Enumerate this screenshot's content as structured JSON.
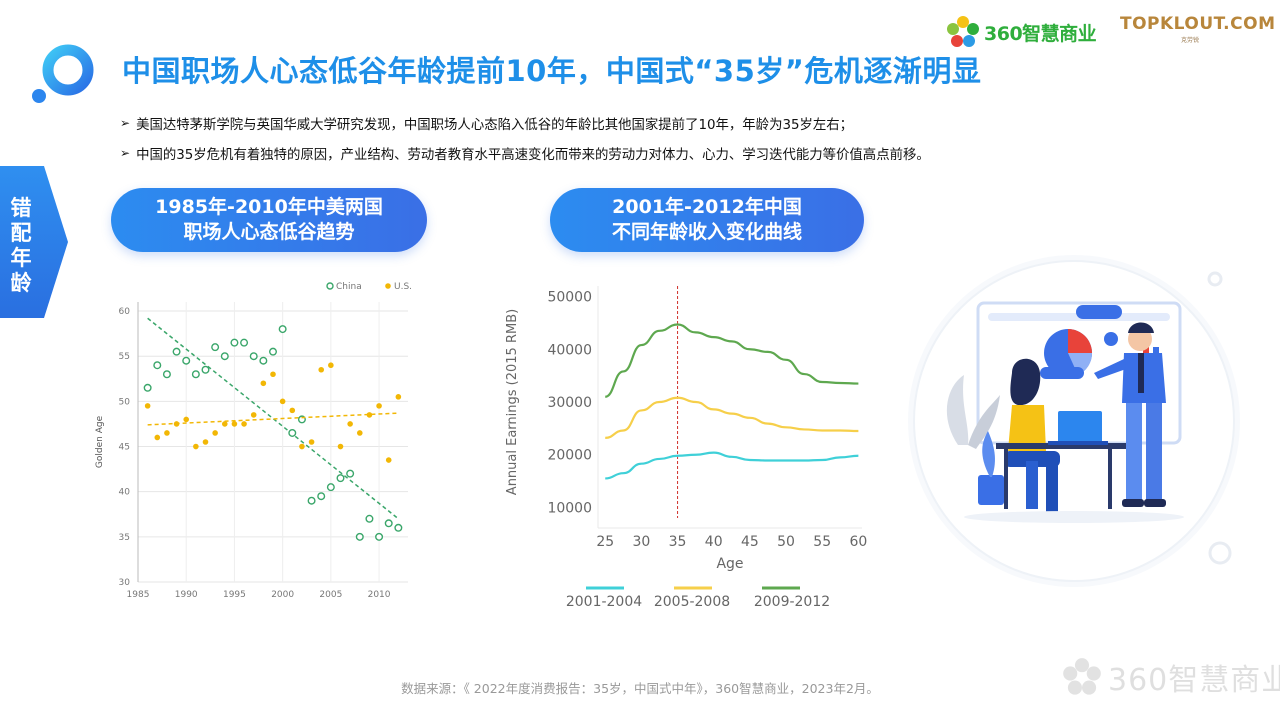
{
  "title": "中国职场人心态低谷年龄提前10年，中国式“35岁”危机逐渐明显",
  "brands": {
    "brand_360": "360智慧商业",
    "topklout": "TOPKLOUT.COM",
    "topklout_sub": "克劳锐"
  },
  "bullets": [
    "美国达特茅斯学院与英国华威大学研究发现，中国职场人心态陷入低谷的年龄比其他国家提前了10年，年龄为35岁左右；",
    "中国的35岁危机有着独特的原因，产业结构、劳动者教育水平高速变化而带来的劳动力对体力、心力、学习迭代能力等价值高点前移。"
  ],
  "side_tab": [
    "错",
    "配",
    "年",
    "龄"
  ],
  "pills": {
    "left_line1": "1985年-2010年中美两国",
    "left_line2": "职场人心态低谷趋势",
    "right_line1": "2001年-2012年中国",
    "right_line2": "不同年龄收入变化曲线"
  },
  "source": "数据来源：《 2022年度消费报告：35岁，中国式中年》，360智慧商业，2023年2月。",
  "watermark": "360智慧商业",
  "colors": {
    "title_blue": "#1e8fe8",
    "china_green": "#3aa66a",
    "us_yellow": "#f2b705",
    "line_cyan": "#3fd0d8",
    "line_yellow": "#f6cf4a",
    "line_green": "#5ea84f"
  },
  "chart_data": [
    {
      "type": "scatter",
      "title": "",
      "xlabel": "",
      "ylabel": "Golden Age",
      "xlim": [
        1985,
        2013
      ],
      "ylim": [
        30,
        61
      ],
      "xticks": [
        1985,
        1990,
        1995,
        2000,
        2005,
        2010
      ],
      "yticks": [
        30,
        35,
        40,
        45,
        50,
        55,
        60
      ],
      "grid": true,
      "legend": "top-right",
      "series": [
        {
          "name": "China",
          "marker": "hollow-circle",
          "points": [
            [
              1986,
              51.5
            ],
            [
              1987,
              54
            ],
            [
              1988,
              53
            ],
            [
              1989,
              55.5
            ],
            [
              1990,
              54.5
            ],
            [
              1991,
              53
            ],
            [
              1992,
              53.5
            ],
            [
              1993,
              56
            ],
            [
              1994,
              55
            ],
            [
              1995,
              56.5
            ],
            [
              1996,
              56.5
            ],
            [
              1997,
              55
            ],
            [
              1998,
              54.5
            ],
            [
              1999,
              55.5
            ],
            [
              2000,
              58
            ],
            [
              2001,
              46.5
            ],
            [
              2002,
              48
            ],
            [
              2003,
              39
            ],
            [
              2004,
              39.5
            ],
            [
              2005,
              40.5
            ],
            [
              2006,
              41.5
            ],
            [
              2007,
              42
            ],
            [
              2008,
              35
            ],
            [
              2009,
              37
            ],
            [
              2010,
              35
            ],
            [
              2011,
              36.5
            ],
            [
              2012,
              36
            ]
          ],
          "trend": [
            [
              1986,
              59.2
            ],
            [
              2012,
              37
            ]
          ]
        },
        {
          "name": "U.S.",
          "marker": "filled-circle",
          "points": [
            [
              1986,
              49.5
            ],
            [
              1987,
              46
            ],
            [
              1988,
              46.5
            ],
            [
              1989,
              47.5
            ],
            [
              1990,
              48
            ],
            [
              1991,
              45
            ],
            [
              1992,
              45.5
            ],
            [
              1993,
              46.5
            ],
            [
              1994,
              47.5
            ],
            [
              1995,
              47.5
            ],
            [
              1996,
              47.5
            ],
            [
              1997,
              48.5
            ],
            [
              1998,
              52
            ],
            [
              1999,
              53
            ],
            [
              2000,
              50
            ],
            [
              2001,
              49
            ],
            [
              2002,
              45
            ],
            [
              2003,
              45.5
            ],
            [
              2004,
              53.5
            ],
            [
              2005,
              54
            ],
            [
              2006,
              45
            ],
            [
              2007,
              47.5
            ],
            [
              2008,
              46.5
            ],
            [
              2009,
              48.5
            ],
            [
              2010,
              49.5
            ],
            [
              2011,
              43.5
            ],
            [
              2012,
              50.5
            ]
          ],
          "trend": [
            [
              1986,
              47.4
            ],
            [
              2012,
              48.7
            ]
          ]
        }
      ]
    },
    {
      "type": "line",
      "title": "",
      "xlabel": "Age",
      "ylabel": "Annual Earnings (2015 RMB)",
      "xlim": [
        24,
        60.5
      ],
      "ylim": [
        8000,
        52000
      ],
      "xticks": [
        25,
        30,
        35,
        40,
        45,
        50,
        55,
        60
      ],
      "yticks": [
        10000,
        20000,
        30000,
        40000,
        50000
      ],
      "grid": false,
      "legend": "bottom",
      "reference_line_x": 35,
      "x": [
        25,
        27.5,
        30,
        32.5,
        35,
        37.5,
        40,
        42.5,
        45,
        47.5,
        50,
        52.5,
        55,
        57.5,
        60
      ],
      "series": [
        {
          "name": "2001-2004",
          "values": [
            15500,
            16500,
            18300,
            19200,
            19800,
            20000,
            20400,
            19600,
            19000,
            18900,
            18900,
            18900,
            19000,
            19500,
            19800
          ]
        },
        {
          "name": "2005-2008",
          "values": [
            23200,
            24600,
            28400,
            30000,
            30800,
            30000,
            28600,
            27800,
            27000,
            25900,
            25200,
            24800,
            24600,
            24600,
            24500
          ]
        },
        {
          "name": "2009-2012",
          "values": [
            31000,
            35800,
            40800,
            43500,
            44700,
            43200,
            42300,
            41500,
            40000,
            39500,
            38000,
            35300,
            33800,
            33600,
            33500
          ]
        }
      ]
    }
  ]
}
